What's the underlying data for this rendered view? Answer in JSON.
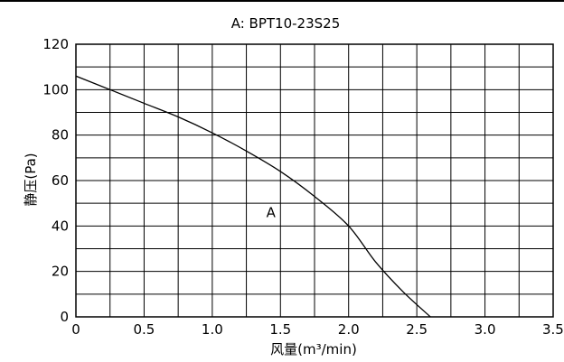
{
  "chart_data": {
    "type": "line",
    "title": "A: BPT10-23S25",
    "xlabel": "风量(m³/min)",
    "ylabel": "静压(Pa)",
    "xlim": [
      0,
      3.5
    ],
    "ylim": [
      0,
      120
    ],
    "x_ticks": [
      0,
      0.5,
      1.0,
      1.5,
      2.0,
      2.5,
      3.0,
      3.5
    ],
    "x_tick_labels": [
      "0",
      "0.5",
      "1.0",
      "1.5",
      "2.0",
      "2.5",
      "3.0",
      "3.5"
    ],
    "y_ticks": [
      0,
      20,
      40,
      60,
      80,
      100,
      120
    ],
    "y_tick_labels": [
      "0",
      "20",
      "40",
      "60",
      "80",
      "100",
      "120"
    ],
    "x_minor_step": 0.25,
    "y_minor_step": 10,
    "grid": true,
    "series": [
      {
        "name": "A",
        "x": [
          0,
          0.25,
          0.5,
          0.75,
          1.0,
          1.25,
          1.5,
          1.75,
          2.0,
          2.2,
          2.4,
          2.6
        ],
        "y": [
          106,
          100,
          94,
          88,
          81,
          73,
          64,
          53,
          40,
          24,
          11,
          0
        ]
      }
    ],
    "annotations": [
      {
        "text": "A",
        "x": 1.43,
        "y": 44
      }
    ]
  },
  "colors": {
    "line": "#000000",
    "grid": "#000000",
    "background": "#ffffff"
  }
}
